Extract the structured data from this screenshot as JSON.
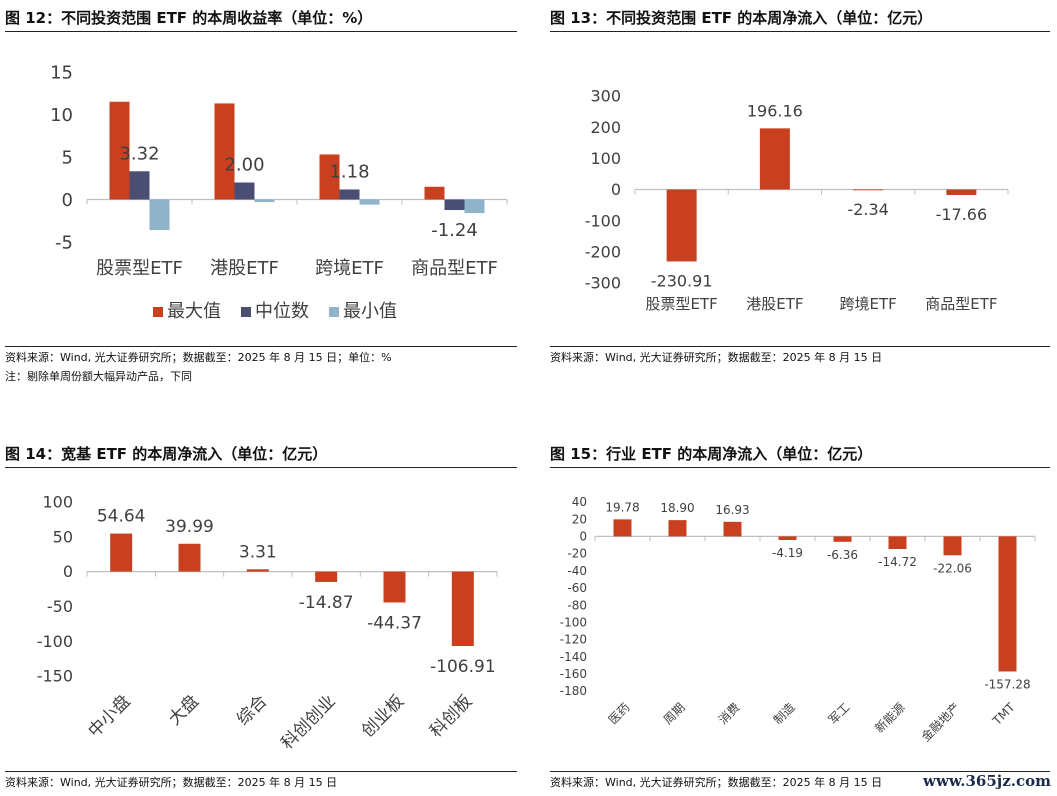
{
  "colors": {
    "max": "#c8401f",
    "median": "#4b4e74",
    "min": "#8fb4c9",
    "bar": "#c8401f",
    "axis": "#bfbfbf"
  },
  "watermark": "www.365jz.com",
  "panels": {
    "p12": {
      "title": "图 12：不同投资范围 ETF 的本周收益率（单位：%）",
      "source": "资料来源：Wind, 光大证券研究所；数据截至：2025 年 8 月 15 日；单位：%",
      "note": "注：剔除单周份额大幅异动产品，下同"
    },
    "p13": {
      "title": "图 13：不同投资范围 ETF 的本周净流入（单位：亿元）",
      "source": "资料来源：Wind, 光大证券研究所；数据截至：2025 年 8 月 15 日"
    },
    "p14": {
      "title": "图 14：宽基 ETF 的本周净流入（单位：亿元）",
      "source": "资料来源：Wind, 光大证券研究所；数据截至：2025 年 8 月 15 日"
    },
    "p15": {
      "title": "图 15：行业 ETF 的本周净流入（单位：亿元）",
      "source": "资料来源：Wind, 光大证券研究所；数据截至：2025 年 8 月 15 日"
    }
  },
  "chart_data": [
    {
      "id": "p12",
      "type": "bar",
      "categories": [
        "股票型ETF",
        "港股ETF",
        "跨境ETF",
        "商品型ETF"
      ],
      "series": [
        {
          "name": "最大值",
          "values": [
            11.5,
            11.3,
            5.3,
            1.5
          ]
        },
        {
          "name": "中位数",
          "values": [
            3.32,
            2.0,
            1.18,
            -1.24
          ]
        },
        {
          "name": "最小值",
          "values": [
            -3.6,
            -0.3,
            -0.6,
            -1.6
          ]
        }
      ],
      "data_labels": {
        "series": "中位数",
        "labels": [
          "3.32",
          "2.00",
          "1.18",
          "-1.24"
        ]
      },
      "yticks": [
        "15",
        "10",
        "5",
        "0",
        "-5"
      ],
      "ylim": [
        -5,
        15
      ],
      "legend": "bottom",
      "grid": false
    },
    {
      "id": "p13",
      "type": "bar",
      "categories": [
        "股票型ETF",
        "港股ETF",
        "跨境ETF",
        "商品型ETF"
      ],
      "values": [
        -230.91,
        196.16,
        -2.34,
        -17.66
      ],
      "labels": [
        "-230.91",
        "196.16",
        "-2.34",
        "-17.66"
      ],
      "yticks": [
        "300",
        "200",
        "100",
        "0",
        "-100",
        "-200",
        "-300"
      ],
      "ylim": [
        -300,
        300
      ],
      "grid": false
    },
    {
      "id": "p14",
      "type": "bar",
      "categories": [
        "中小盘",
        "大盘",
        "综合",
        "科创创业",
        "创业板",
        "科创板"
      ],
      "values": [
        54.64,
        39.99,
        3.31,
        -14.87,
        -44.37,
        -106.91
      ],
      "labels": [
        "54.64",
        "39.99",
        "3.31",
        "-14.87",
        "-44.37",
        "-106.91"
      ],
      "yticks": [
        "100",
        "50",
        "0",
        "-50",
        "-100",
        "-150"
      ],
      "ylim": [
        -150,
        100
      ],
      "grid": false
    },
    {
      "id": "p15",
      "type": "bar",
      "categories": [
        "医药",
        "周期",
        "消费",
        "制造",
        "军工",
        "新能源",
        "金融地产",
        "TMT"
      ],
      "values": [
        19.78,
        18.9,
        16.93,
        -4.19,
        -6.36,
        -14.72,
        -22.06,
        -157.28
      ],
      "labels": [
        "19.78",
        "18.90",
        "16.93",
        "-4.19",
        "-6.36",
        "-14.72",
        "-22.06",
        "-157.28"
      ],
      "yticks": [
        "40",
        "20",
        "0",
        "-20",
        "-40",
        "-60",
        "-80",
        "-100",
        "-120",
        "-140",
        "-160",
        "-180"
      ],
      "ylim": [
        -180,
        40
      ],
      "grid": false
    }
  ]
}
